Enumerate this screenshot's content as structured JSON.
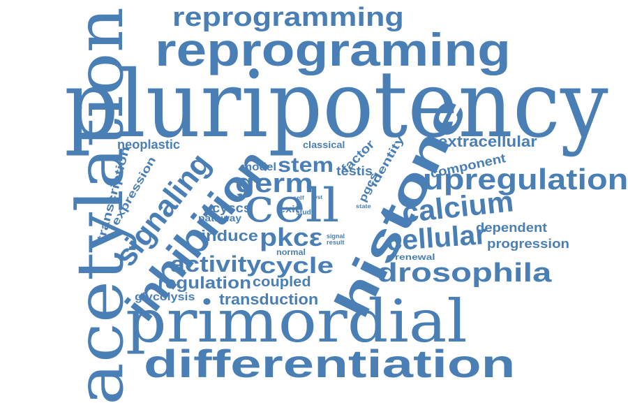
{
  "words": {
    "acetylation": "acetylation",
    "reprogramming": "reprogramming",
    "reprograming": "reprograming",
    "pluripotency": "pluripotency",
    "neoplastic": "neoplastic",
    "classical": "classical",
    "extracellular": "extracellular",
    "factor": "factor",
    "identity": "identity",
    "component": "component",
    "transcription": "transcription",
    "expression": "expression",
    "signaling": "signaling",
    "inhibition": "inhibition",
    "model": "model",
    "stem": "stem",
    "testis": "testis",
    "germ": "germ",
    "cell": "cell",
    "histone": "histone",
    "upregulation": "upregulation",
    "self": "self",
    "cyst": "cyst",
    "pgcs": "pgcs",
    "state": "state",
    "cyscs": "cyscs",
    "exit": "exit",
    "study": "study",
    "pathway": "pathway",
    "calcium": "calcium",
    "dependent": "dependent",
    "induce": "induce",
    "pkce": "pkcε",
    "signal": "signal",
    "result": "result",
    "cellular": "cellular",
    "progression": "progression",
    "normal": "normal",
    "renewal": "renewal",
    "activity": "activity",
    "cycle": "cycle",
    "drosophila": "drosophila",
    "regulation": "regulation",
    "coupled": "coupled",
    "glycolysis": "glycolysis",
    "transduction": "transduction",
    "primordial": "primordial",
    "differentiation": "differentiation"
  },
  "colors": {
    "word": "#4a7fb5",
    "background": "#ffffff"
  }
}
